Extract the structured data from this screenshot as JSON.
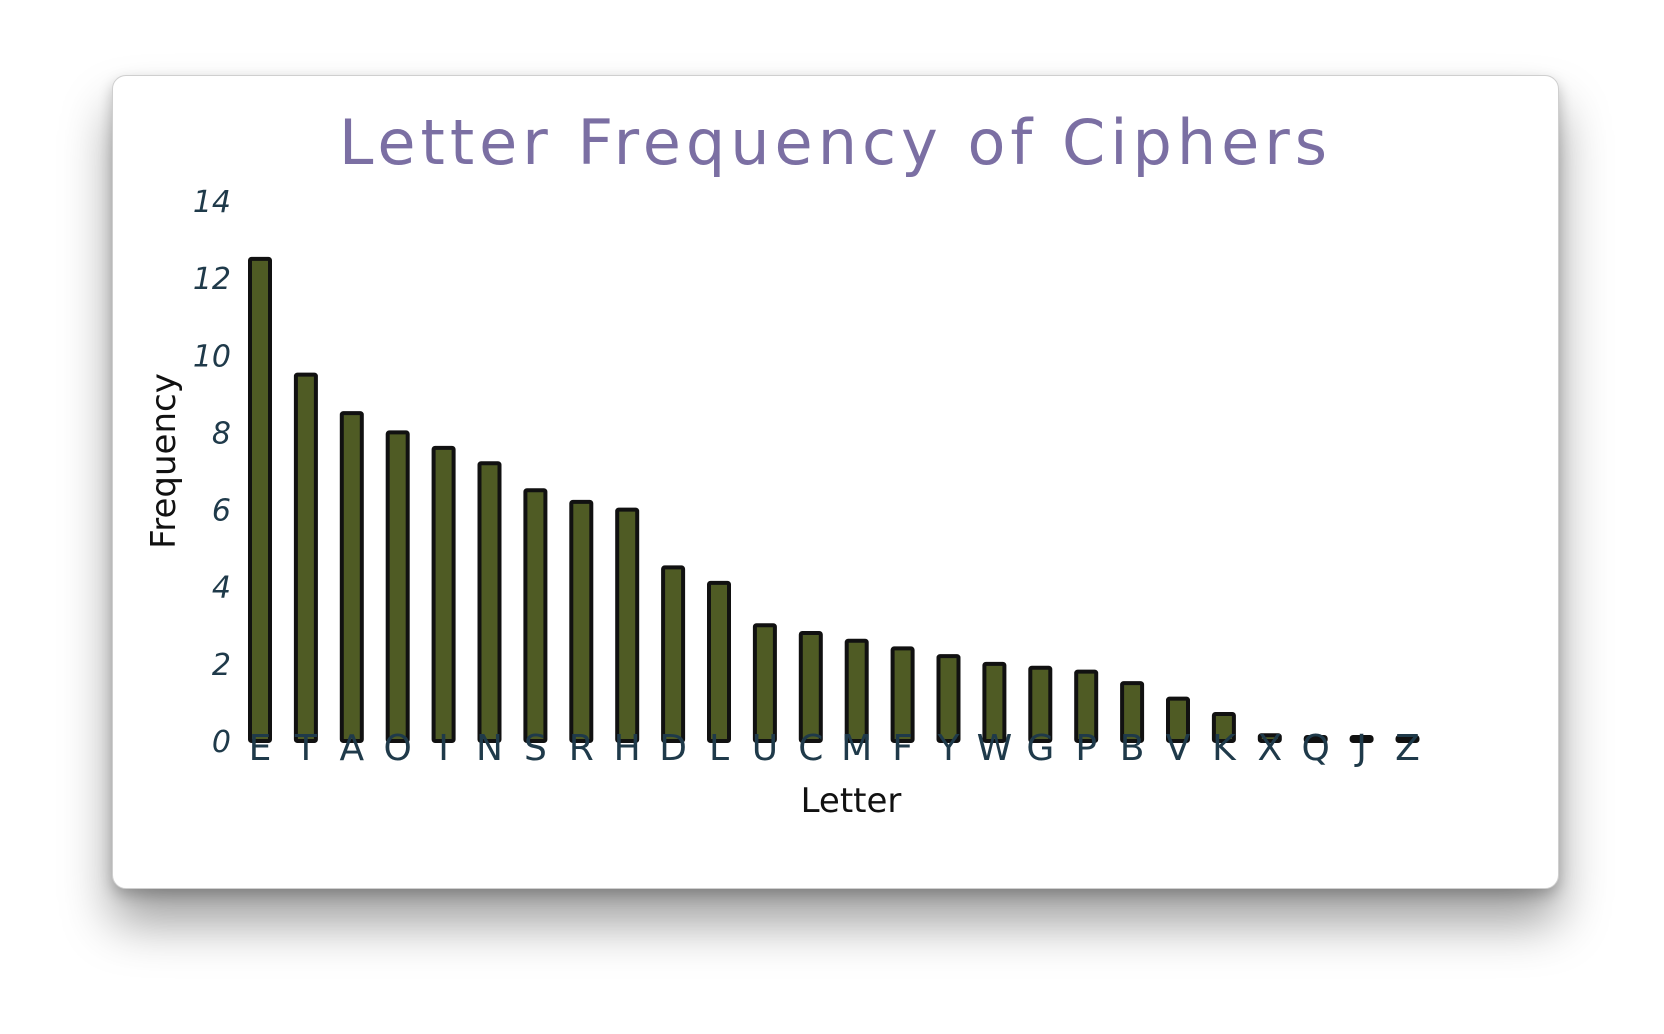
{
  "chart_data": {
    "type": "bar",
    "title": "Letter Frequency of Ciphers",
    "xlabel": "Letter",
    "ylabel": "Frequency",
    "ylim": [
      0,
      14
    ],
    "yticks": [
      "0",
      "2",
      "4",
      "6",
      "8",
      "10",
      "12",
      "14"
    ],
    "grid": false,
    "categories": [
      "E",
      "T",
      "A",
      "O",
      "I",
      "N",
      "S",
      "R",
      "H",
      "D",
      "L",
      "U",
      "C",
      "M",
      "F",
      "Y",
      "W",
      "G",
      "P",
      "B",
      "V",
      "K",
      "X",
      "Q",
      "J",
      "Z"
    ],
    "values": [
      12.5,
      9.5,
      8.5,
      8.0,
      7.6,
      7.2,
      6.5,
      6.2,
      6.0,
      4.5,
      4.1,
      3.0,
      2.8,
      2.6,
      2.4,
      2.2,
      2.0,
      1.9,
      1.8,
      1.5,
      1.1,
      0.7,
      0.15,
      0.1,
      0.1,
      0.05
    ],
    "colors": {
      "bar_fill": "#4f5b24",
      "bar_stroke": "#111111",
      "title": "#7b6fa3",
      "tick": "#1f3a4a"
    }
  }
}
